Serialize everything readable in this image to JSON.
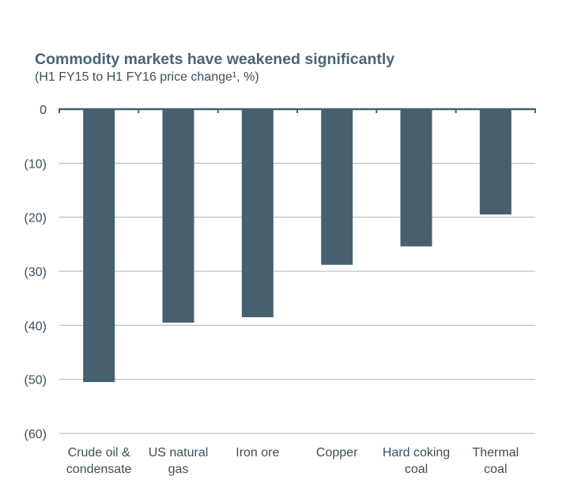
{
  "chart_data": {
    "type": "bar",
    "title": "Commodity markets have weakened significantly",
    "subtitle": "(H1 FY15 to H1 FY16 price change¹, %)",
    "categories": [
      [
        "Crude oil &",
        "condensate"
      ],
      [
        "US natural",
        "gas"
      ],
      [
        "Iron ore"
      ],
      [
        "Copper"
      ],
      [
        "Hard coking",
        "coal"
      ],
      [
        "Thermal",
        "coal"
      ]
    ],
    "values": [
      -50.5,
      -39.5,
      -38.5,
      -28.8,
      -25.4,
      -19.5
    ],
    "ylim": [
      -60,
      0
    ],
    "yticks": [
      {
        "value": 0,
        "label": "0"
      },
      {
        "value": -10,
        "label": "(10)"
      },
      {
        "value": -20,
        "label": "(20)"
      },
      {
        "value": -30,
        "label": "(30)"
      },
      {
        "value": -40,
        "label": "(40)"
      },
      {
        "value": -50,
        "label": "(50)"
      },
      {
        "value": -60,
        "label": "(60)"
      }
    ],
    "grid": true,
    "colors": {
      "bar": "#46606f",
      "axis": "#46606f",
      "grid": "#a9b3ba",
      "title": "#4a6475",
      "text": "#3b4f5c"
    }
  }
}
